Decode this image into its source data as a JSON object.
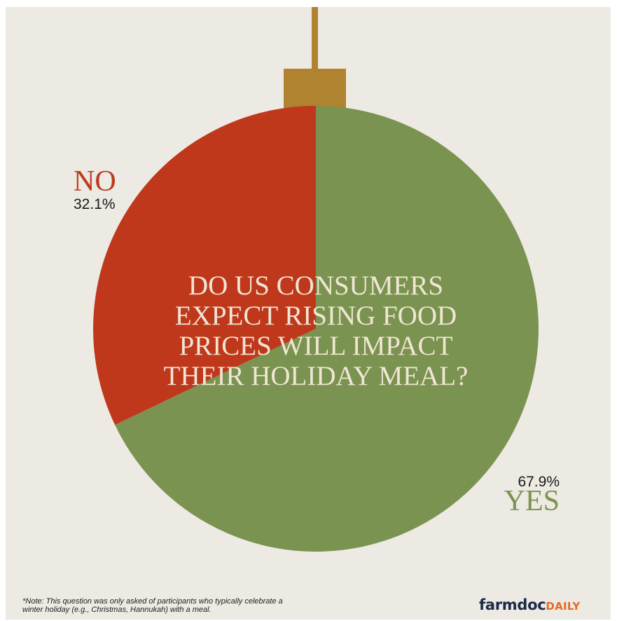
{
  "colors": {
    "background": "#ede9e3",
    "no": "#c0381c",
    "yes": "#7b9350",
    "hook": "#b08331",
    "title_text": "#efe6d3",
    "logo_primary": "#1c2b4a",
    "logo_accent": "#e56a24"
  },
  "chart_data": {
    "type": "pie",
    "title": "DO US CONSUMERS EXPECT RISING FOOD PRICES WILL IMPACT THEIR HOLIDAY MEAL?",
    "title_lines": [
      "DO US CONSUMERS",
      "EXPECT RISING FOOD",
      "PRICES WILL IMPACT",
      "THEIR HOLIDAY MEAL?"
    ],
    "slices": [
      {
        "label": "NO",
        "value": 32.1,
        "value_label": "32.1%",
        "color": "#c0381c"
      },
      {
        "label": "YES",
        "value": 67.9,
        "value_label": "67.9%",
        "color": "#7b9350"
      }
    ]
  },
  "footer": {
    "note_line1": "*Note: This question was only asked of participants who typically celebrate a",
    "note_line2": "winter holiday (e.g., Christmas, Hannukah) with a meal.",
    "logo_main": "farmdoc",
    "logo_sub": "DAILY"
  }
}
